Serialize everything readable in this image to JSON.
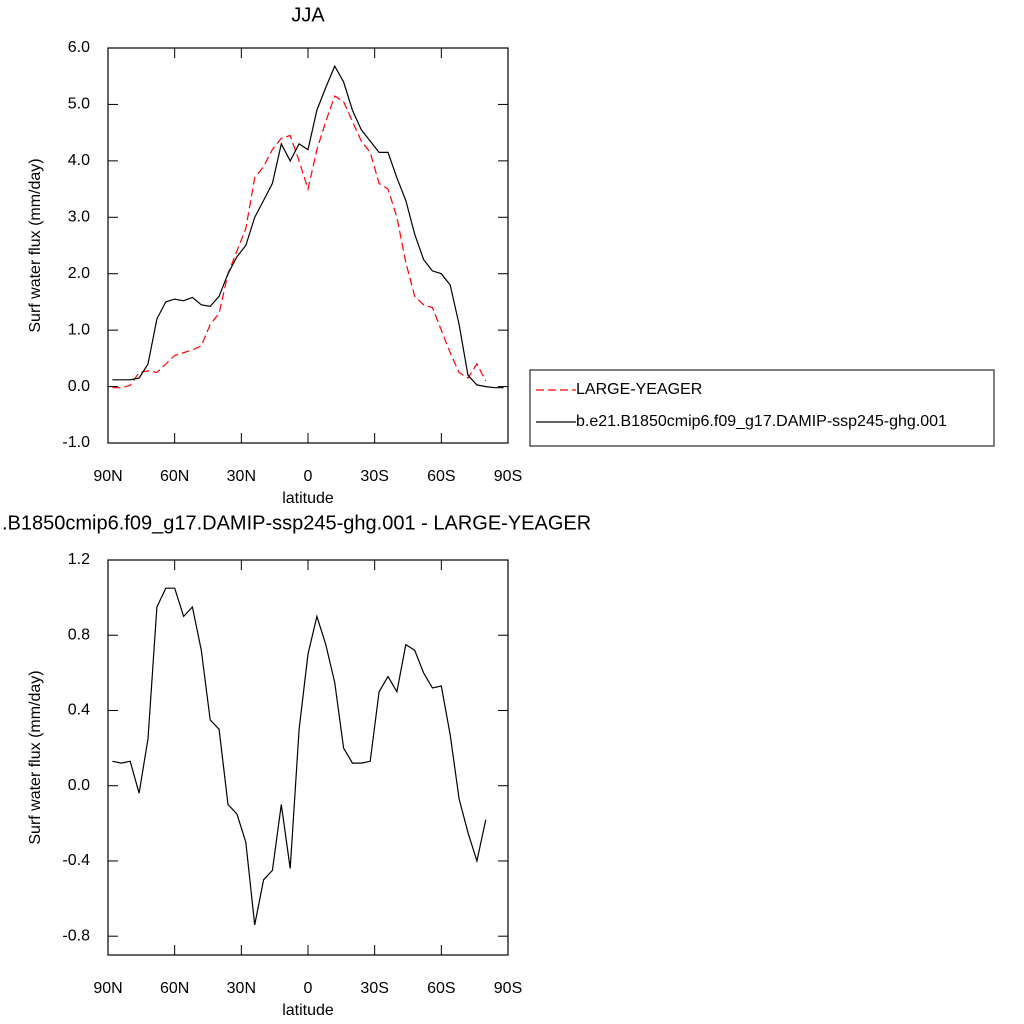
{
  "chart_data": [
    {
      "type": "line",
      "title": "JJA",
      "xlabel": "latitude",
      "ylabel": "Surf water flux (mm/day)",
      "x": [
        88,
        84,
        80,
        76,
        72,
        68,
        64,
        60,
        56,
        52,
        48,
        44,
        40,
        36,
        32,
        28,
        24,
        20,
        16,
        12,
        8,
        4,
        0,
        -4,
        -8,
        -12,
        -16,
        -20,
        -24,
        -28,
        -32,
        -36,
        -40,
        -44,
        -48,
        -52,
        -56,
        -60,
        -64,
        -68,
        -72,
        -76,
        -80,
        -84,
        -88
      ],
      "xlim": [
        90,
        -90
      ],
      "xticks": [
        {
          "value": 90,
          "label": "90N"
        },
        {
          "value": 60,
          "label": "60N"
        },
        {
          "value": 30,
          "label": "30N"
        },
        0,
        {
          "value": -30,
          "label": "30S"
        },
        {
          "value": -60,
          "label": "60S"
        },
        {
          "value": -90,
          "label": "90S"
        }
      ],
      "ylim": [
        -1,
        6
      ],
      "yticks": [
        {
          "value": -1,
          "label": "-1.0"
        },
        {
          "value": 0,
          "label": "0.0"
        },
        {
          "value": 1,
          "label": "1.0"
        },
        {
          "value": 2,
          "label": "2.0"
        },
        {
          "value": 3,
          "label": "3.0"
        },
        {
          "value": 4,
          "label": "4.0"
        },
        {
          "value": 5,
          "label": "5.0"
        },
        {
          "value": 6,
          "label": "6.0"
        }
      ],
      "legend": "right",
      "series": [
        {
          "name": "LARGE-YEAGER",
          "color": "#ff0000",
          "line_style": "dashed",
          "values": [
            -0.02,
            -0.02,
            0.02,
            0.25,
            0.28,
            0.25,
            0.4,
            0.55,
            0.6,
            0.65,
            0.72,
            1.1,
            1.3,
            2.0,
            2.4,
            2.8,
            3.7,
            3.9,
            4.2,
            4.4,
            4.45,
            4.0,
            3.5,
            4.2,
            4.7,
            5.15,
            5.05,
            4.7,
            4.35,
            4.15,
            3.6,
            3.5,
            3.0,
            2.2,
            1.6,
            1.45,
            1.4,
            1.0,
            0.6,
            0.25,
            0.15,
            0.4,
            0.1,
            null,
            null
          ]
        },
        {
          "name": "b.e21.B1850cmip6.f09_g17.DAMIP-ssp245-ghg.001",
          "color": "#000000",
          "line_style": "solid",
          "values": [
            0.12,
            0.12,
            0.12,
            0.15,
            0.4,
            1.2,
            1.5,
            1.55,
            1.52,
            1.58,
            1.45,
            1.42,
            1.6,
            2.0,
            2.3,
            2.5,
            3.0,
            3.3,
            3.6,
            4.3,
            4.0,
            4.3,
            4.2,
            4.9,
            5.3,
            5.68,
            5.4,
            4.9,
            4.55,
            4.35,
            4.15,
            4.15,
            3.7,
            3.3,
            2.7,
            2.25,
            2.05,
            2.0,
            1.8,
            1.1,
            0.2,
            0.03,
            0.0,
            -0.02,
            -0.02
          ]
        }
      ]
    },
    {
      "type": "line",
      "title": ".B1850cmip6.f09_g17.DAMIP-ssp245-ghg.001 - LARGE-YEAGER",
      "xlabel": "latitude",
      "ylabel": "Surf water flux (mm/day)",
      "x": [
        88,
        84,
        80,
        76,
        72,
        68,
        64,
        60,
        56,
        52,
        48,
        44,
        40,
        36,
        32,
        28,
        24,
        20,
        16,
        12,
        8,
        4,
        0,
        -4,
        -8,
        -12,
        -16,
        -20,
        -24,
        -28,
        -32,
        -36,
        -40,
        -44,
        -48,
        -52,
        -56,
        -60,
        -64,
        -68,
        -72,
        -76,
        -80,
        -84,
        -88
      ],
      "xlim": [
        90,
        -90
      ],
      "xticks": [
        {
          "value": 90,
          "label": "90N"
        },
        {
          "value": 60,
          "label": "60N"
        },
        {
          "value": 30,
          "label": "30N"
        },
        0,
        {
          "value": -30,
          "label": "30S"
        },
        {
          "value": -60,
          "label": "60S"
        },
        {
          "value": -90,
          "label": "90S"
        }
      ],
      "ylim": [
        -0.9,
        1.2
      ],
      "yticks": [
        -0.8,
        -0.4,
        {
          "value": 0,
          "label": "0.0"
        },
        0.4,
        0.8,
        1.2
      ],
      "series": [
        {
          "color": "#000000",
          "line_style": "solid",
          "values": [
            0.13,
            0.12,
            0.13,
            -0.04,
            0.25,
            0.95,
            1.05,
            1.05,
            0.9,
            0.95,
            0.72,
            0.35,
            0.3,
            -0.1,
            -0.15,
            -0.3,
            -0.74,
            -0.5,
            -0.45,
            -0.1,
            -0.44,
            0.3,
            0.7,
            0.9,
            0.75,
            0.55,
            0.2,
            0.12,
            0.12,
            0.13,
            0.5,
            0.58,
            0.5,
            0.75,
            0.72,
            0.6,
            0.52,
            0.53,
            0.27,
            -0.07,
            -0.25,
            -0.4,
            -0.18,
            null,
            null
          ]
        }
      ]
    }
  ]
}
